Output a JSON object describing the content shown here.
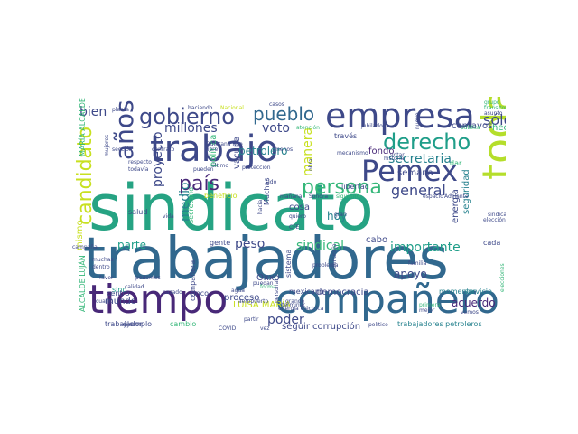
{
  "palette": {
    "purple": "#482878",
    "violet": "#46337e",
    "indigo": "#3e4989",
    "blue": "#31688e",
    "teal": "#26828e",
    "sea": "#1f9e89",
    "green": "#35b779",
    "lime": "#6ece58",
    "yellow": "#b5de2b",
    "gold": "#c8e020"
  },
  "words": [
    "sindicato",
    "trabajadores",
    "toda",
    "tiempo",
    "compañero",
    "trabajo",
    "empresa",
    "Pemex",
    "gobierno",
    "pueblo",
    "años",
    "derecho",
    "persona",
    "candidato",
    "país",
    "millones",
    "voto",
    "manera",
    "secretaria",
    "general",
    "sólo",
    "bien",
    "proyecto",
    "medio",
    "petrolero",
    "sindical",
    "importante",
    "hoy",
    "peso",
    "parte",
    "mismo",
    "poder",
    "LUISA MARÍA",
    "acuerdo",
    "apoyo",
    "energía",
    "seguridad",
    "centavos",
    "hecho",
    "fondo",
    "semana",
    "cosa",
    "libertad",
    "dar",
    "beneficio",
    "salud",
    "vacuna",
    "política",
    "mundo",
    "sino",
    "centro",
    "cinco",
    "proceso",
    "Oxxo",
    "gente",
    "cabo",
    "corrupción",
    "seguir",
    "democracia",
    "mexicano",
    "momento",
    "servicio",
    "cada",
    "trabajador",
    "ejemplo",
    "cambio",
    "trabajadores petroleros",
    "MARÍA ALCALDE",
    "ALCALDE LUJÁN",
    "campaña",
    "COVID",
    "vez",
    "partir",
    "sistema",
    "problema",
    "denuncia",
    "través",
    "mecanismo",
    "historia",
    "elección",
    "sindicales",
    "grande",
    "Sonora",
    "CFE",
    "mañana",
    "quiero",
    "Muchas",
    "hacia",
    "pueden",
    "libre",
    "vida",
    "podemos",
    "agua",
    "compañera",
    "planta",
    "haciendo",
    "Nacional",
    "casos",
    "atención",
    "nuevo",
    "grupo",
    "transitorio",
    "asunto",
    "pública",
    "elecciones",
    "Quintana Roo",
    "dentro",
    "muchas",
    "cuatro",
    "calidad",
    "favor",
    "secretario",
    "forma",
    "mujeres",
    "energía eléctrica",
    "jubilado",
    "votar",
    "primera",
    "mejor",
    "familia",
    "Adelante",
    "espacio",
    "siguiente",
    "aeropuerto",
    "terminar",
    "personal",
    "gran",
    "protección",
    "sección",
    "contrato",
    "todavía",
    "respecto",
    "menos",
    "obra",
    "puedan",
    "político",
    "vemos",
    "último",
    "sido",
    "pasado"
  ]
}
